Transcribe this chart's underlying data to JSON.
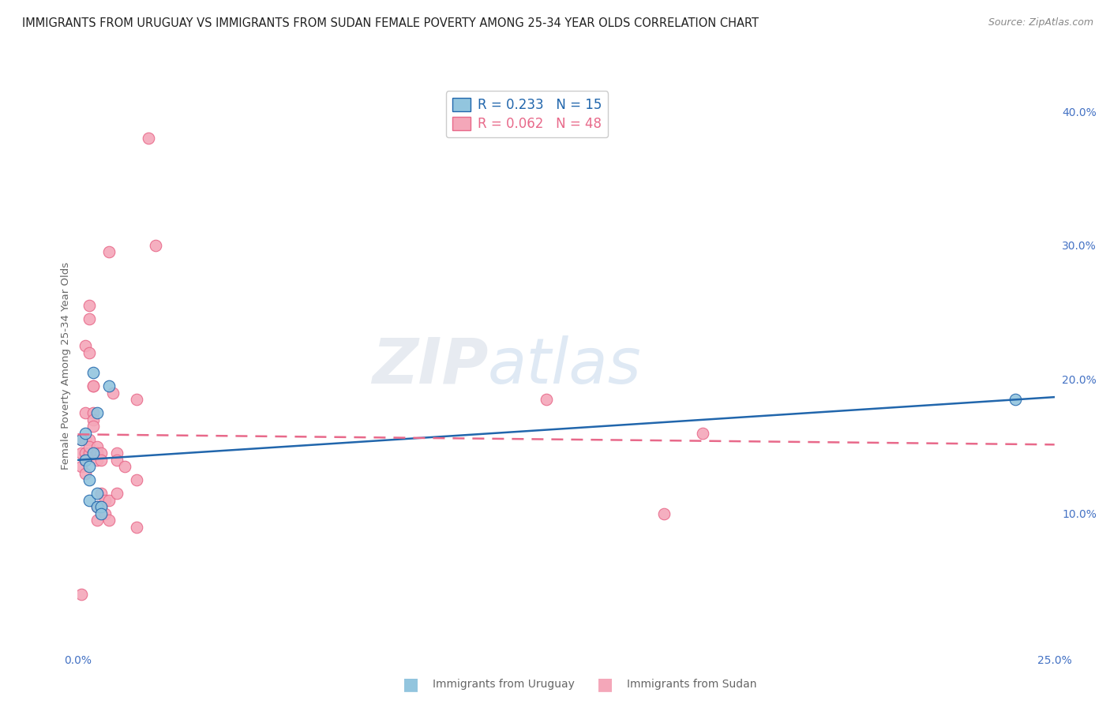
{
  "title": "IMMIGRANTS FROM URUGUAY VS IMMIGRANTS FROM SUDAN FEMALE POVERTY AMONG 25-34 YEAR OLDS CORRELATION CHART",
  "source": "Source: ZipAtlas.com",
  "ylabel": "Female Poverty Among 25-34 Year Olds",
  "xlim": [
    0.0,
    0.25
  ],
  "ylim": [
    0.0,
    0.42
  ],
  "xtick_positions": [
    0.0,
    0.05,
    0.1,
    0.15,
    0.2,
    0.25
  ],
  "xticklabels": [
    "0.0%",
    "",
    "",
    "",
    "",
    "25.0%"
  ],
  "ytick_positions": [
    0.1,
    0.2,
    0.3,
    0.4
  ],
  "ytick_labels": [
    "10.0%",
    "20.0%",
    "30.0%",
    "40.0%"
  ],
  "legend_R_uruguay": "R = 0.233",
  "legend_N_uruguay": "N = 15",
  "legend_R_sudan": "R = 0.062",
  "legend_N_sudan": "N = 48",
  "uruguay_color": "#92c5de",
  "sudan_color": "#f4a7b9",
  "trend_uruguay_color": "#2166ac",
  "trend_sudan_color": "#e8698a",
  "watermark_zip": "ZIP",
  "watermark_atlas": "atlas",
  "background_color": "#ffffff",
  "grid_color": "#e0e0e0",
  "title_color": "#222222",
  "source_color": "#888888",
  "tick_color": "#4472c4",
  "ylabel_color": "#666666",
  "legend_label_color_uru": "#2166ac",
  "legend_label_color_sud": "#e8698a",
  "bottom_legend_color": "#666666",
  "uruguay_points_x": [
    0.001,
    0.002,
    0.002,
    0.003,
    0.003,
    0.003,
    0.004,
    0.004,
    0.005,
    0.005,
    0.005,
    0.006,
    0.006,
    0.008,
    0.24
  ],
  "uruguay_points_y": [
    0.155,
    0.14,
    0.16,
    0.135,
    0.125,
    0.11,
    0.145,
    0.205,
    0.175,
    0.115,
    0.105,
    0.105,
    0.1,
    0.195,
    0.185
  ],
  "sudan_points_x": [
    0.001,
    0.001,
    0.001,
    0.001,
    0.002,
    0.002,
    0.002,
    0.002,
    0.002,
    0.002,
    0.003,
    0.003,
    0.003,
    0.003,
    0.003,
    0.003,
    0.004,
    0.004,
    0.004,
    0.004,
    0.004,
    0.005,
    0.005,
    0.005,
    0.005,
    0.005,
    0.006,
    0.006,
    0.006,
    0.006,
    0.007,
    0.007,
    0.008,
    0.008,
    0.008,
    0.009,
    0.01,
    0.01,
    0.01,
    0.012,
    0.015,
    0.015,
    0.015,
    0.018,
    0.12,
    0.15,
    0.16,
    0.02
  ],
  "sudan_points_y": [
    0.155,
    0.145,
    0.135,
    0.04,
    0.155,
    0.145,
    0.14,
    0.13,
    0.225,
    0.175,
    0.155,
    0.145,
    0.15,
    0.255,
    0.245,
    0.22,
    0.195,
    0.175,
    0.17,
    0.165,
    0.195,
    0.15,
    0.145,
    0.14,
    0.105,
    0.095,
    0.145,
    0.14,
    0.115,
    0.105,
    0.11,
    0.1,
    0.295,
    0.11,
    0.095,
    0.19,
    0.145,
    0.14,
    0.115,
    0.135,
    0.185,
    0.09,
    0.125,
    0.38,
    0.185,
    0.1,
    0.16,
    0.3
  ],
  "title_fontsize": 10.5,
  "axis_label_fontsize": 9.5,
  "tick_fontsize": 10,
  "legend_fontsize": 12,
  "source_fontsize": 9
}
